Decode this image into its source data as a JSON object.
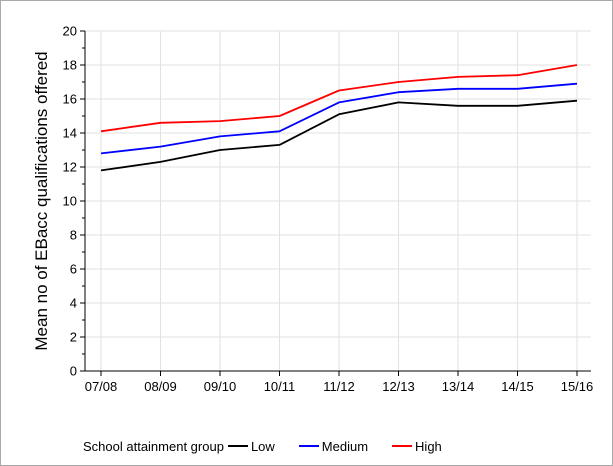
{
  "chart_data": {
    "type": "line",
    "categories": [
      "07/08",
      "08/09",
      "09/10",
      "10/11",
      "11/12",
      "12/13",
      "13/14",
      "14/15",
      "15/16"
    ],
    "ylabel": "Mean no of EBacc qualifications offered",
    "xlabel": "",
    "ylim": [
      0,
      20
    ],
    "yticks": [
      "0",
      "2",
      "4",
      "6",
      "8",
      "10",
      "12",
      "14",
      "16",
      "18",
      "20"
    ],
    "grid": true,
    "legend_title": "School attainment group",
    "legend_position": "bottom",
    "series": [
      {
        "name": "Low",
        "color": "#000000",
        "values": [
          11.8,
          12.3,
          13.0,
          13.3,
          15.1,
          15.8,
          15.6,
          15.6,
          15.9
        ]
      },
      {
        "name": "Medium",
        "color": "#0000ff",
        "values": [
          12.8,
          13.2,
          13.8,
          14.1,
          15.8,
          16.4,
          16.6,
          16.6,
          16.9
        ]
      },
      {
        "name": "High",
        "color": "#ff0000",
        "values": [
          14.1,
          14.6,
          14.7,
          15.0,
          16.5,
          17.0,
          17.3,
          17.4,
          18.0
        ]
      }
    ]
  }
}
